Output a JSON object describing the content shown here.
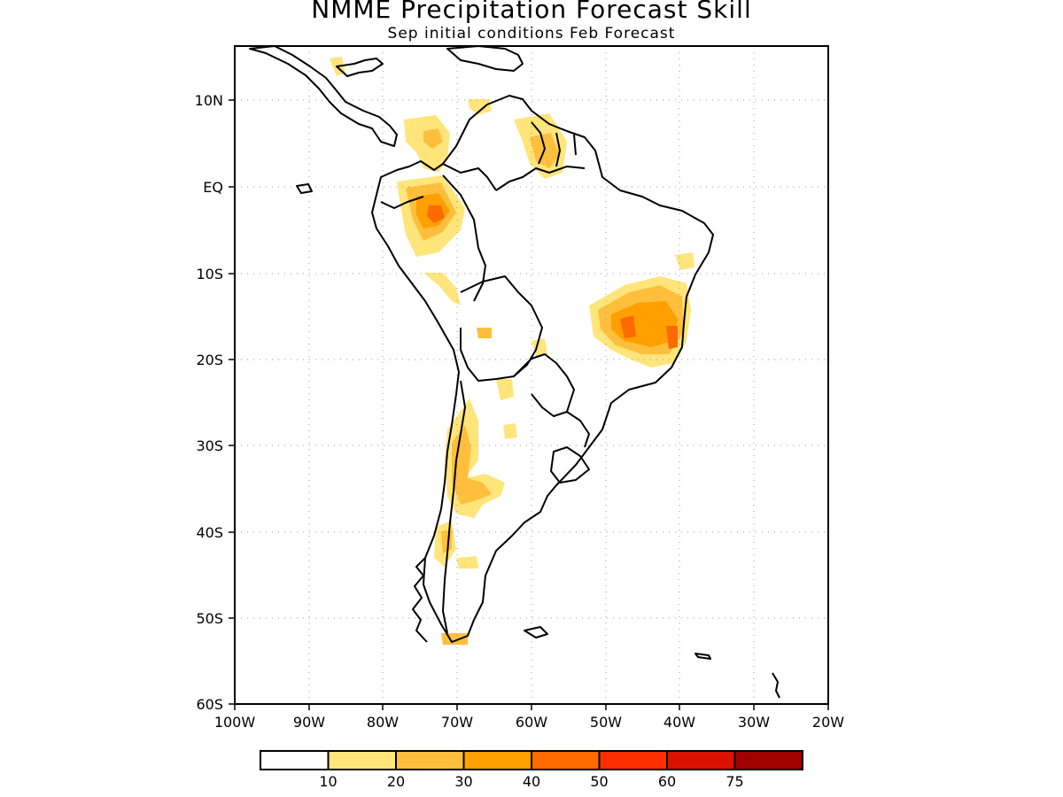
{
  "title": "NMME Precipitation Forecast Skill",
  "subtitle": "Sep initial conditions  Feb Forecast",
  "map": {
    "lat_labels": [
      "10N",
      "EQ",
      "10S",
      "20S",
      "30S",
      "40S",
      "50S",
      "60S"
    ],
    "lon_labels": [
      "100W",
      "90W",
      "80W",
      "70W",
      "60W",
      "50W",
      "40W",
      "30W",
      "20W"
    ]
  },
  "legend": {
    "colors": [
      "#ffffff",
      "#ffe57a",
      "#ffbf3c",
      "#ff9f00",
      "#ff6a00",
      "#ff2e00",
      "#db1200",
      "#a00000"
    ],
    "labels": [
      "10",
      "20",
      "30",
      "40",
      "50",
      "60",
      "75"
    ]
  }
}
